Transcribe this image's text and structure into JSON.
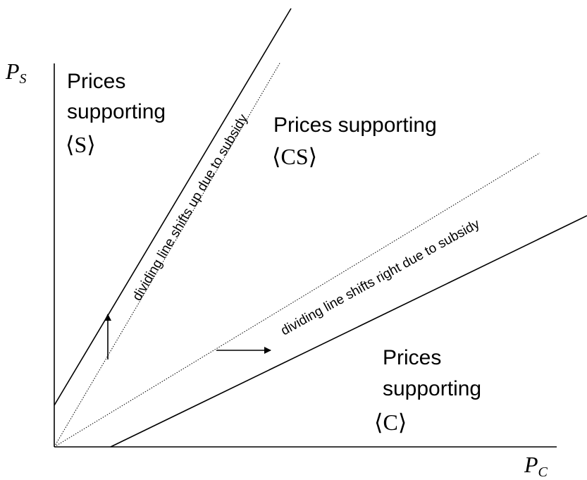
{
  "axes": {
    "y_label": {
      "main": "P",
      "sub": "S"
    },
    "x_label": {
      "main": "P",
      "sub": "C"
    }
  },
  "regions": [
    {
      "lines": [
        "Prices",
        "supporting"
      ],
      "set": "⟨S⟩"
    },
    {
      "lines": [
        "Prices supporting"
      ],
      "set": "⟨CS⟩"
    },
    {
      "lines": [
        "Prices",
        "supporting"
      ],
      "set": "⟨C⟩"
    }
  ],
  "annotations": [
    "dividing line shifts up due to subsidy",
    "dividing line shifts right due to subsidy"
  ]
}
